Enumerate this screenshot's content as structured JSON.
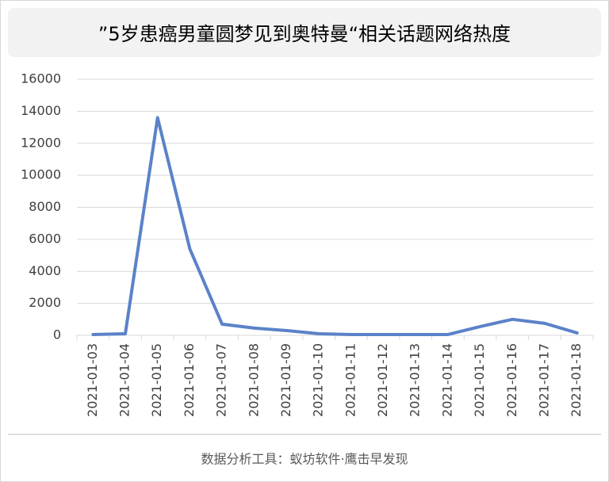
{
  "chart_data": {
    "type": "line",
    "title": "”5岁患癌男童圆梦见到奥特曼“相关话题网络热度",
    "footer": "数据分析工具：蚁坊软件·鹰击早发现",
    "categories": [
      "2021-01-03",
      "2021-01-04",
      "2021-01-05",
      "2021-01-06",
      "2021-01-07",
      "2021-01-08",
      "2021-01-09",
      "2021-01-10",
      "2021-01-11",
      "2021-01-12",
      "2021-01-13",
      "2021-01-14",
      "2021-01-15",
      "2021-01-16",
      "2021-01-17",
      "2021-01-18"
    ],
    "values": [
      50,
      100,
      13600,
      5400,
      700,
      450,
      300,
      100,
      50,
      50,
      50,
      50,
      550,
      1000,
      750,
      150
    ],
    "color": "#5b82c9",
    "ylim": [
      0,
      16000
    ],
    "yticks": [
      0,
      2000,
      4000,
      6000,
      8000,
      10000,
      12000,
      14000,
      16000
    ],
    "grid": true
  }
}
